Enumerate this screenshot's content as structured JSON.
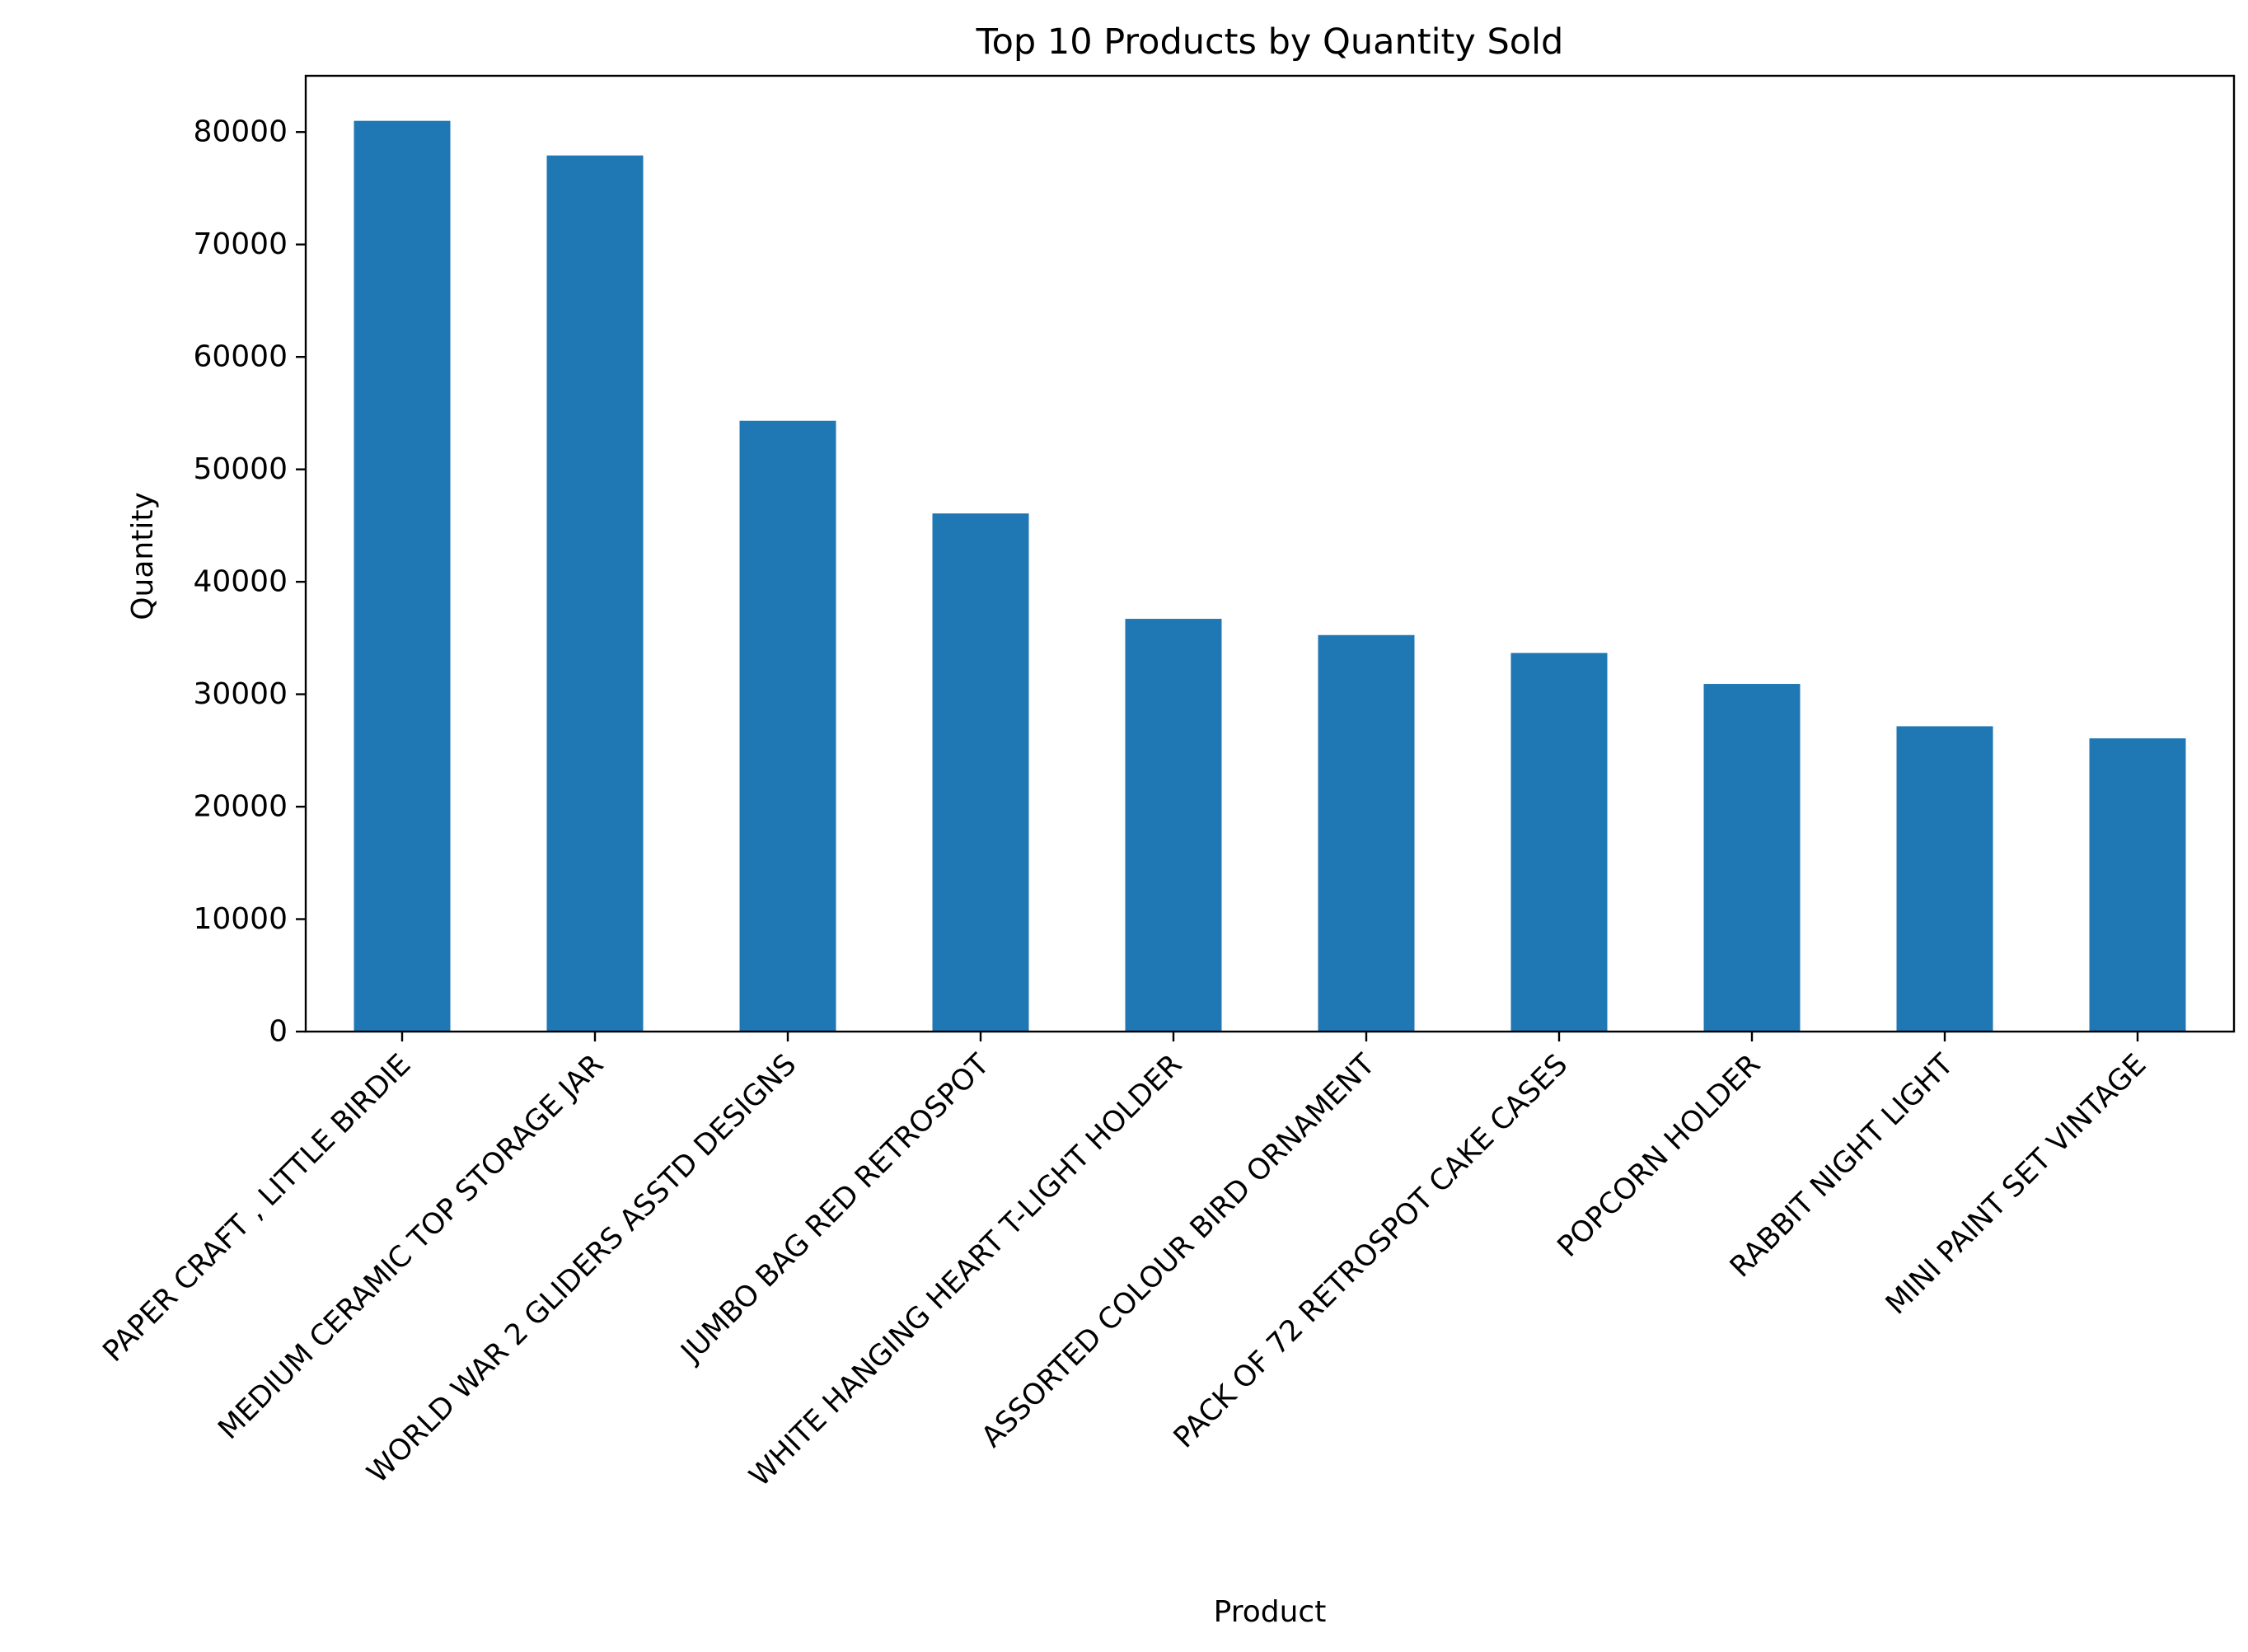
{
  "colors": {
    "bar": "#1f77b4",
    "axis": "#000000",
    "background": "#ffffff"
  },
  "chart_data": {
    "type": "bar",
    "title": "Top 10 Products by Quantity Sold",
    "xlabel": "Product",
    "ylabel": "Quantity",
    "categories": [
      "PAPER CRAFT , LITTLE BIRDIE",
      "MEDIUM CERAMIC TOP STORAGE JAR",
      "WORLD WAR 2 GLIDERS ASSTD DESIGNS",
      "JUMBO BAG RED RETROSPOT",
      "WHITE HANGING HEART T-LIGHT HOLDER",
      "ASSORTED COLOUR BIRD ORNAMENT",
      "PACK OF 72 RETROSPOT CAKE CASES",
      "POPCORN HOLDER",
      "RABBIT NIGHT LIGHT",
      "MINI PAINT SET VINTAGE"
    ],
    "values": [
      80995,
      77916,
      54319,
      46078,
      36706,
      35263,
      33670,
      30919,
      27153,
      26076
    ],
    "ylim": [
      0,
      85000
    ],
    "yticks": [
      0,
      10000,
      20000,
      30000,
      40000,
      50000,
      60000,
      70000,
      80000
    ],
    "ytick_labels": [
      "0",
      "10000",
      "20000",
      "30000",
      "40000",
      "50000",
      "60000",
      "70000",
      "80000"
    ],
    "grid": false,
    "legend": "none"
  }
}
